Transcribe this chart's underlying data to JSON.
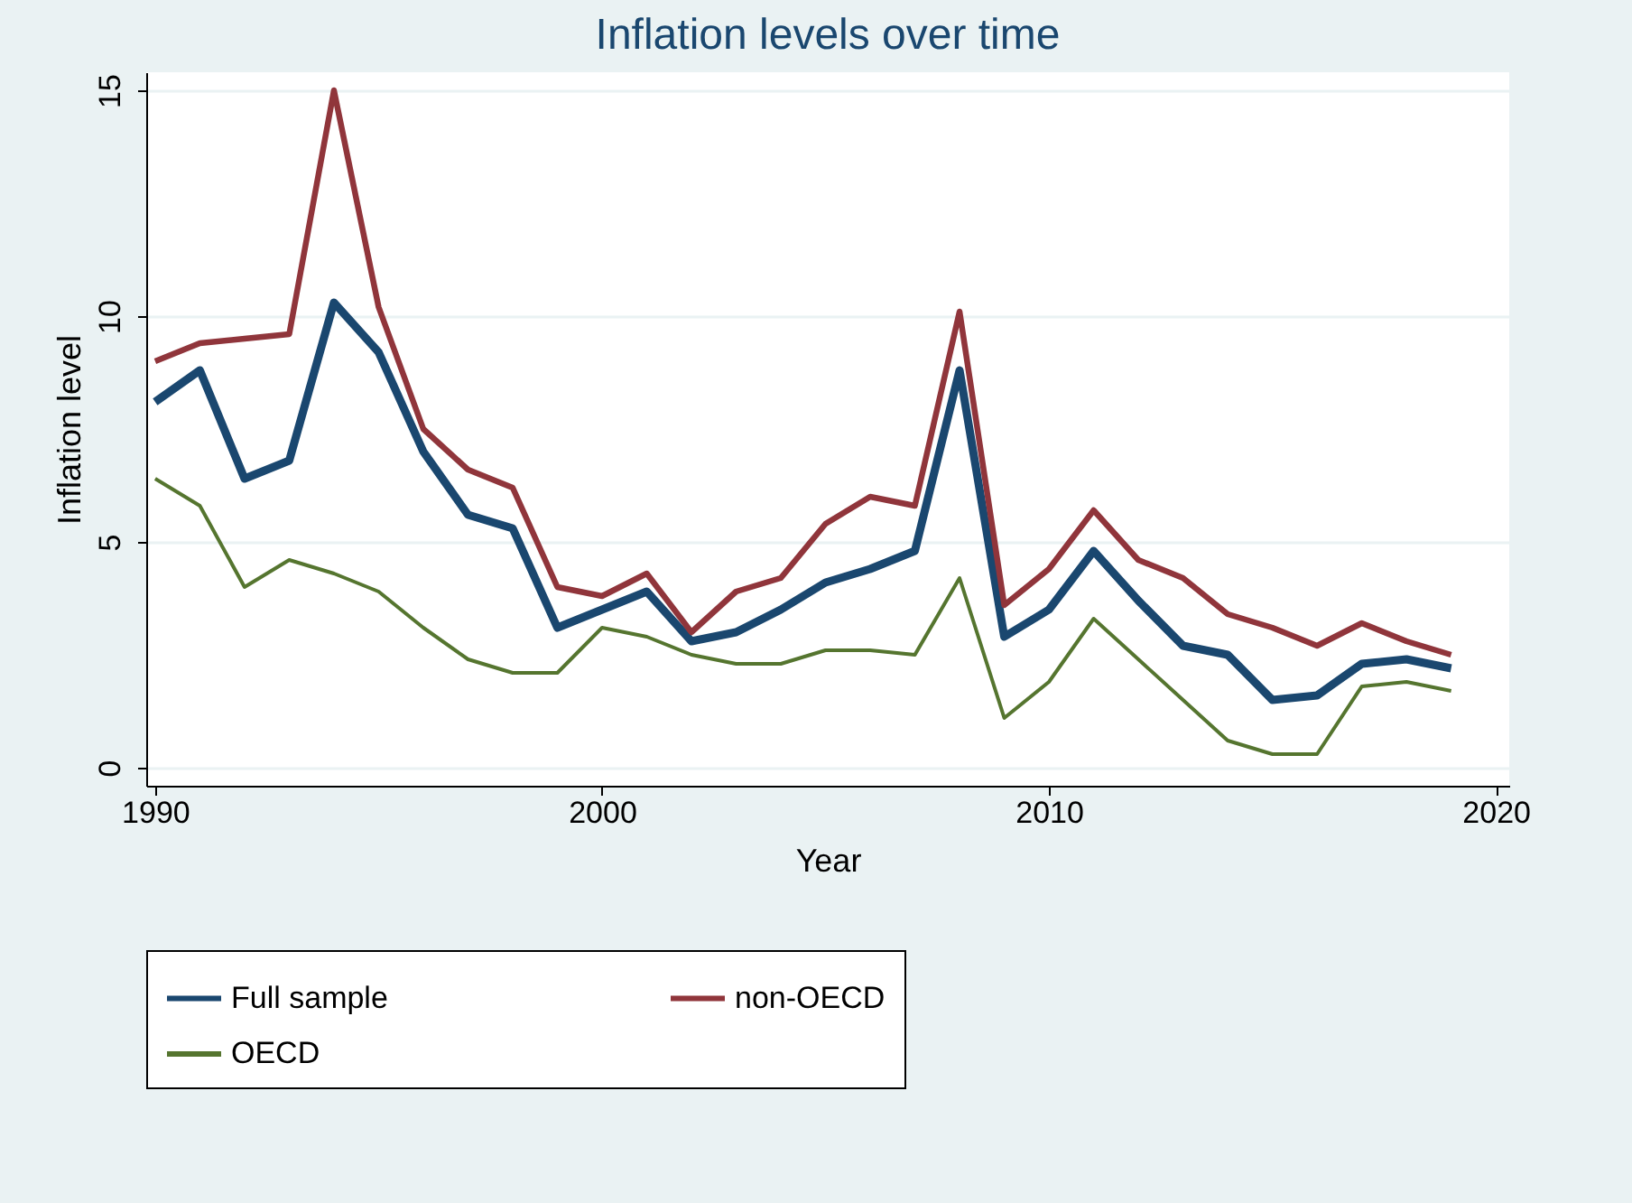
{
  "chart_data": {
    "type": "line",
    "title": "Inflation levels over time",
    "xlabel": "Year",
    "ylabel": "Inflation level",
    "x": [
      1990,
      1991,
      1992,
      1993,
      1994,
      1995,
      1996,
      1997,
      1998,
      1999,
      2000,
      2001,
      2002,
      2003,
      2004,
      2005,
      2006,
      2007,
      2008,
      2009,
      2010,
      2011,
      2012,
      2013,
      2014,
      2015,
      2016,
      2017,
      2018,
      2019
    ],
    "series": [
      {
        "name": "Full sample",
        "color": "#1a476f",
        "values": [
          8.1,
          8.8,
          6.4,
          6.8,
          10.3,
          9.2,
          7.0,
          5.6,
          5.3,
          3.1,
          3.5,
          3.9,
          2.8,
          3.0,
          3.5,
          4.1,
          4.4,
          4.8,
          8.8,
          2.9,
          3.5,
          4.8,
          3.7,
          2.7,
          2.5,
          1.5,
          1.6,
          2.3,
          2.4,
          2.2
        ]
      },
      {
        "name": "non-OECD",
        "color": "#90353b",
        "values": [
          9.0,
          9.4,
          9.5,
          9.6,
          15.0,
          10.2,
          7.5,
          6.6,
          6.2,
          4.0,
          3.8,
          4.3,
          3.0,
          3.9,
          4.2,
          5.4,
          6.0,
          5.8,
          10.1,
          3.6,
          4.4,
          5.7,
          4.6,
          4.2,
          3.4,
          3.1,
          2.7,
          3.2,
          2.8,
          2.5
        ]
      },
      {
        "name": "OECD",
        "color": "#55752f",
        "values": [
          6.4,
          5.8,
          4.0,
          4.6,
          4.3,
          3.9,
          3.1,
          2.4,
          2.1,
          2.1,
          3.1,
          2.9,
          2.5,
          2.3,
          2.3,
          2.6,
          2.6,
          2.5,
          4.2,
          1.1,
          1.9,
          3.3,
          2.4,
          1.5,
          0.6,
          0.3,
          0.3,
          1.8,
          1.9,
          1.7
        ]
      }
    ],
    "xlim": [
      1989.8,
      2020.3
    ],
    "xticks": [
      1990,
      2000,
      2010,
      2020
    ],
    "ylim": [
      -0.4,
      15.4
    ],
    "yticks": [
      0,
      5,
      10,
      15
    ],
    "grid": "y",
    "legend": "bottom",
    "marker": "none",
    "line_style": "solid"
  }
}
